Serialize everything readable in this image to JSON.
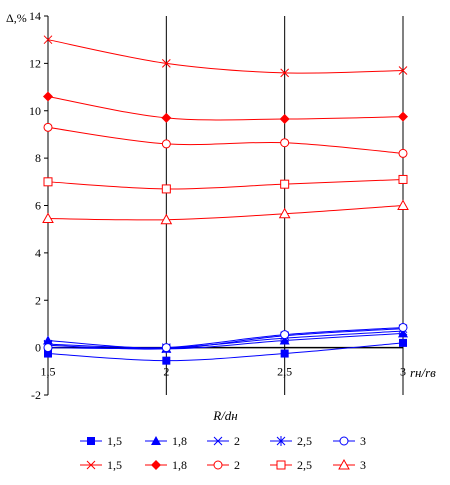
{
  "chart_data": {
    "type": "line",
    "ylabel": "Δ,%",
    "xlabel": "R/dн",
    "x_axis_end_label": "rн/rв",
    "x": [
      1.5,
      2,
      2.5,
      3
    ],
    "x_tick_labels": [
      "1,5",
      "2",
      "2,5",
      "3"
    ],
    "ylim": [
      -2,
      14
    ],
    "y_ticks": [
      -2,
      0,
      2,
      4,
      6,
      8,
      10,
      12,
      14
    ],
    "grid": "vertical",
    "legend_position": "bottom",
    "series": [
      {
        "name": "1,5",
        "color": "#0000ff",
        "marker": "square-filled",
        "values": [
          -0.25,
          -0.55,
          -0.25,
          0.2
        ]
      },
      {
        "name": "1,8",
        "color": "#0000ff",
        "marker": "triangle-filled",
        "values": [
          0.3,
          -0.05,
          0.3,
          0.6
        ]
      },
      {
        "name": "2",
        "color": "#0000ff",
        "marker": "x",
        "values": [
          0.15,
          0.0,
          0.4,
          0.7
        ]
      },
      {
        "name": "2,5",
        "color": "#0000ff",
        "marker": "star",
        "values": [
          0.1,
          -0.05,
          0.5,
          0.8
        ]
      },
      {
        "name": "3",
        "color": "#0000ff",
        "marker": "circle-open",
        "values": [
          0.0,
          0.0,
          0.55,
          0.85
        ]
      },
      {
        "name": "1,5",
        "color": "#ff0000",
        "marker": "x",
        "values": [
          13.0,
          12.0,
          11.6,
          11.7
        ]
      },
      {
        "name": "1,8",
        "color": "#ff0000",
        "marker": "diamond-filled",
        "values": [
          10.6,
          9.7,
          9.65,
          9.75
        ]
      },
      {
        "name": "2",
        "color": "#ff0000",
        "marker": "circle-open",
        "values": [
          9.3,
          8.6,
          8.65,
          8.2
        ]
      },
      {
        "name": "2,5",
        "color": "#ff0000",
        "marker": "square-open",
        "values": [
          7.0,
          6.7,
          6.9,
          7.1
        ]
      },
      {
        "name": "3",
        "color": "#ff0000",
        "marker": "triangle-open",
        "values": [
          5.45,
          5.4,
          5.65,
          6.0
        ]
      }
    ]
  }
}
